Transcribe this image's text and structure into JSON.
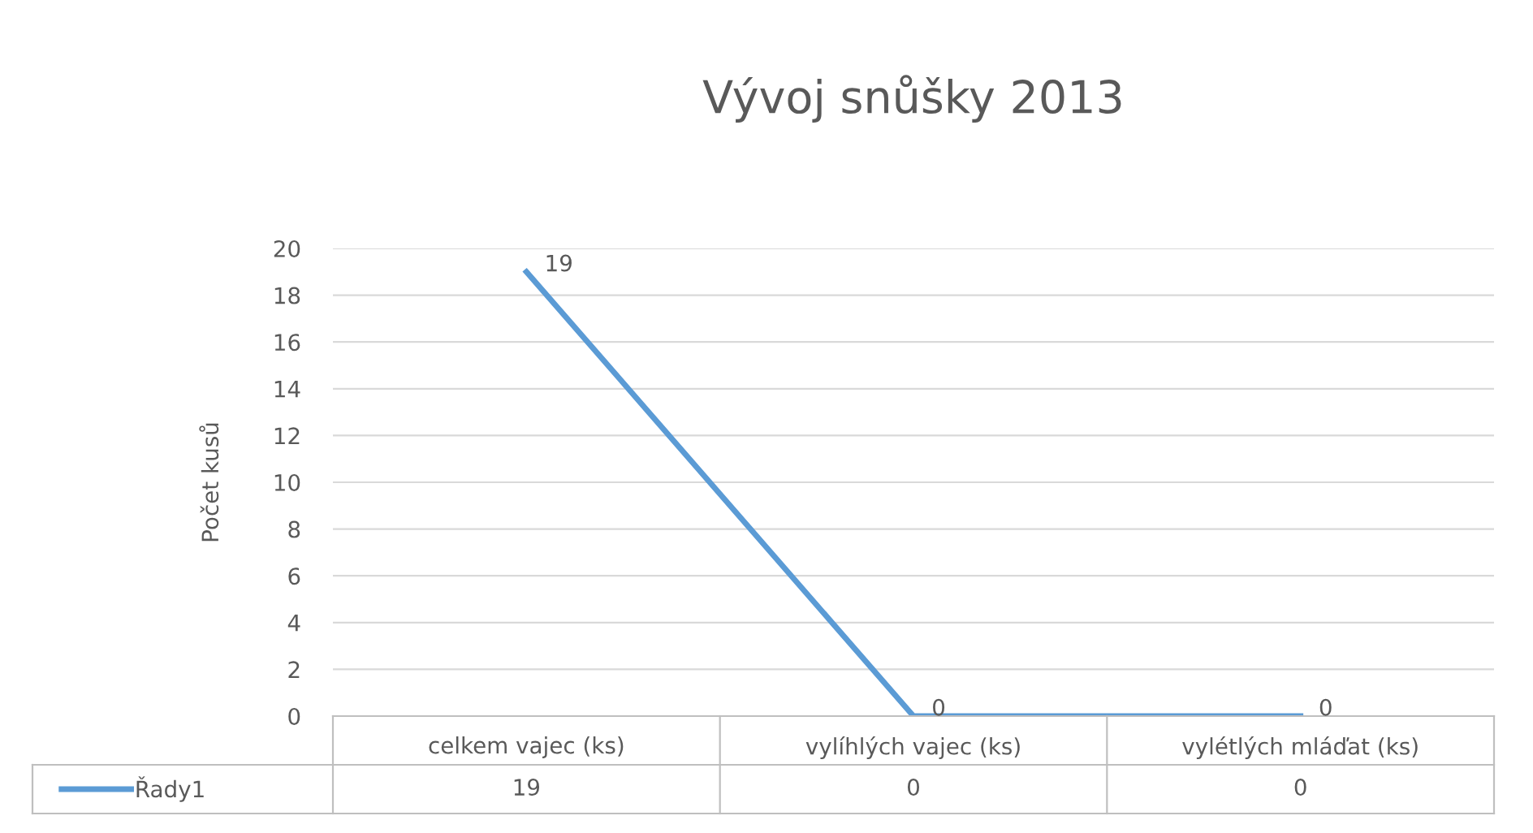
{
  "chart_data": {
    "type": "line",
    "title": "Vývoj snůšky 2013",
    "ylabel": "Počet kusů",
    "categories": [
      "celkem vajec (ks)",
      "vylíhlých vajec (ks)",
      "vylétlých mláďat (ks)"
    ],
    "series": [
      {
        "name": "Řady1",
        "color": "#5b9bd5",
        "values": [
          19,
          0,
          0
        ],
        "value_labels": [
          "19",
          "0",
          "0"
        ]
      }
    ],
    "ylim": [
      0,
      20
    ],
    "yticks": [
      0,
      2,
      4,
      6,
      8,
      10,
      12,
      14,
      16,
      18,
      20
    ],
    "grid": "y",
    "annotations": [
      "19",
      "0",
      "0"
    ],
    "legend": "bottom",
    "marker": "none",
    "line_style": "solid"
  }
}
